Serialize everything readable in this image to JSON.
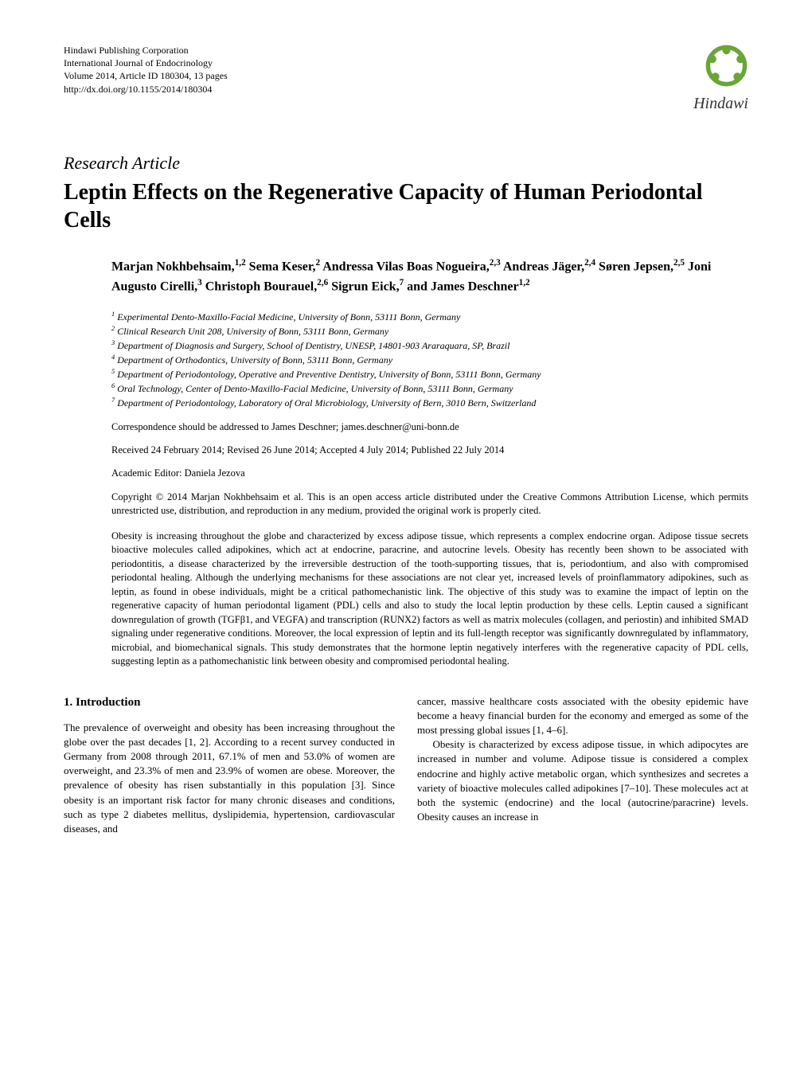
{
  "header": {
    "publisher": "Hindawi Publishing Corporation",
    "journal": "International Journal of Endocrinology",
    "volume": "Volume 2014, Article ID 180304, 13 pages",
    "doi": "http://dx.doi.org/10.1155/2014/180304",
    "logo_name": "Hindawi",
    "logo_color": "#6ba539"
  },
  "article": {
    "type": "Research Article",
    "title": "Leptin Effects on the Regenerative Capacity of Human Periodontal Cells",
    "authors_html": "Marjan Nokhbehsaim,<sup>1,2</sup> Sema Keser,<sup>2</sup> Andressa Vilas Boas Nogueira,<sup>2,3</sup> Andreas Jäger,<sup>2,4</sup> Søren Jepsen,<sup>2,5</sup> Joni Augusto Cirelli,<sup>3</sup> Christoph Bourauel,<sup>2,6</sup> Sigrun Eick,<sup>7</sup> and James Deschner<sup>1,2</sup>",
    "affiliations": [
      "Experimental Dento-Maxillo-Facial Medicine, University of Bonn, 53111 Bonn, Germany",
      "Clinical Research Unit 208, University of Bonn, 53111 Bonn, Germany",
      "Department of Diagnosis and Surgery, School of Dentistry, UNESP, 14801-903 Araraquara, SP, Brazil",
      "Department of Orthodontics, University of Bonn, 53111 Bonn, Germany",
      "Department of Periodontology, Operative and Preventive Dentistry, University of Bonn, 53111 Bonn, Germany",
      "Oral Technology, Center of Dento-Maxillo-Facial Medicine, University of Bonn, 53111 Bonn, Germany",
      "Department of Periodontology, Laboratory of Oral Microbiology, University of Bern, 3010 Bern, Switzerland"
    ],
    "correspondence": "Correspondence should be addressed to James Deschner; james.deschner@uni-bonn.de",
    "dates": "Received 24 February 2014; Revised 26 June 2014; Accepted 4 July 2014; Published 22 July 2014",
    "editor": "Academic Editor: Daniela Jezova",
    "copyright": "Copyright © 2014 Marjan Nokhbehsaim et al. This is an open access article distributed under the Creative Commons Attribution License, which permits unrestricted use, distribution, and reproduction in any medium, provided the original work is properly cited.",
    "abstract": "Obesity is increasing throughout the globe and characterized by excess adipose tissue, which represents a complex endocrine organ. Adipose tissue secrets bioactive molecules called adipokines, which act at endocrine, paracrine, and autocrine levels. Obesity has recently been shown to be associated with periodontitis, a disease characterized by the irreversible destruction of the tooth-supporting tissues, that is, periodontium, and also with compromised periodontal healing. Although the underlying mechanisms for these associations are not clear yet, increased levels of proinflammatory adipokines, such as leptin, as found in obese individuals, might be a critical pathomechanistic link. The objective of this study was to examine the impact of leptin on the regenerative capacity of human periodontal ligament (PDL) cells and also to study the local leptin production by these cells. Leptin caused a significant downregulation of growth (TGFβ1, and VEGFA) and transcription (RUNX2) factors as well as matrix molecules (collagen, and periostin) and inhibited SMAD signaling under regenerative conditions. Moreover, the local expression of leptin and its full-length receptor was significantly downregulated by inflammatory, microbial, and biomechanical signals. This study demonstrates that the hormone leptin negatively interferes with the regenerative capacity of PDL cells, suggesting leptin as a pathomechanistic link between obesity and compromised periodontal healing."
  },
  "body": {
    "section1_heading": "1. Introduction",
    "col1": "The prevalence of overweight and obesity has been increasing throughout the globe over the past decades [1, 2]. According to a recent survey conducted in Germany from 2008 through 2011, 67.1% of men and 53.0% of women are overweight, and 23.3% of men and 23.9% of women are obese. Moreover, the prevalence of obesity has risen substantially in this population [3]. Since obesity is an important risk factor for many chronic diseases and conditions, such as type 2 diabetes mellitus, dyslipidemia, hypertension, cardiovascular diseases, and",
    "col2_p1": "cancer, massive healthcare costs associated with the obesity epidemic have become a heavy financial burden for the economy and emerged as some of the most pressing global issues [1, 4–6].",
    "col2_p2": "Obesity is characterized by excess adipose tissue, in which adipocytes are increased in number and volume. Adipose tissue is considered a complex endocrine and highly active metabolic organ, which synthesizes and secretes a variety of bioactive molecules called adipokines [7–10]. These molecules act at both the systemic (endocrine) and the local (autocrine/paracrine) levels. Obesity causes an increase in"
  }
}
